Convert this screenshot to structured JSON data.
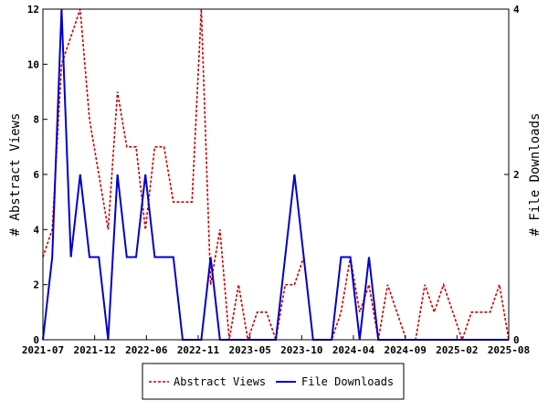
{
  "chart_data": {
    "type": "line",
    "x_tick_labels": [
      "2021-07",
      "2021-12",
      "2022-06",
      "2022-11",
      "2023-05",
      "2023-10",
      "2024-04",
      "2024-09",
      "2025-02",
      "2025-08"
    ],
    "y_left": {
      "label": "# Abstract Views",
      "range": [
        0,
        12
      ],
      "ticks": [
        0,
        2,
        4,
        6,
        8,
        10,
        12
      ]
    },
    "y_right": {
      "label": "# File Downloads",
      "range": [
        0,
        4
      ],
      "ticks": [
        0,
        2,
        4
      ]
    },
    "grid": false,
    "legend_position": "bottom-center",
    "series": [
      {
        "name": "Abstract Views",
        "axis": "left",
        "color": "#cc0000",
        "style": "dashed",
        "values": [
          3,
          4,
          10,
          11,
          12,
          8,
          6,
          4,
          9,
          7,
          7,
          4,
          7,
          7,
          5,
          5,
          5,
          12,
          2,
          4,
          0,
          2,
          0,
          1,
          1,
          0,
          2,
          2,
          3,
          0,
          0,
          0,
          1,
          3,
          1,
          2,
          0,
          2,
          1,
          0,
          0,
          2,
          1,
          2,
          1,
          0,
          1,
          1,
          1,
          2,
          0
        ]
      },
      {
        "name": "File Downloads",
        "axis": "right",
        "color": "#0000cc",
        "style": "solid",
        "values": [
          0,
          1,
          4,
          1,
          2,
          1,
          1,
          0,
          2,
          1,
          1,
          2,
          1,
          1,
          1,
          0,
          0,
          0,
          1,
          0,
          0,
          0,
          0,
          0,
          0,
          0,
          1,
          2,
          1,
          0,
          0,
          0,
          1,
          1,
          0,
          1,
          0,
          0,
          0,
          0,
          0,
          0,
          0,
          0,
          0,
          0,
          0,
          0,
          0,
          0,
          0
        ]
      }
    ]
  }
}
